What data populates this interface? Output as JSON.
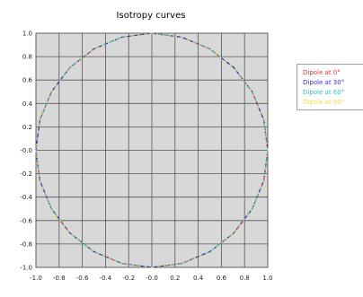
{
  "chart_data": {
    "type": "line",
    "title": "Isotropy curves",
    "xlabel": "",
    "ylabel": "",
    "xlim": [
      -1.0,
      1.0
    ],
    "ylim": [
      -1.0,
      1.0
    ],
    "x_ticks": [
      "-1.0",
      "-0.8",
      "-0.6",
      "-0.4",
      "-0.2",
      "-0.0",
      "0.2",
      "0.4",
      "0.6",
      "0.8",
      "1.0"
    ],
    "y_ticks": [
      "1.0",
      "0.8",
      "0.6",
      "0.4",
      "0.2",
      "-0.0",
      "-0.2",
      "-0.4",
      "-0.6",
      "-0.8",
      "-1.0"
    ],
    "grid": true,
    "plot_background": "#d8d8d8",
    "legend_placement": "right",
    "series": [
      {
        "name": "Dipole at 0°",
        "color": "#e03030",
        "x": [
          1.0,
          0.966,
          0.866,
          0.707,
          0.5,
          0.259,
          0.0,
          -0.259,
          -0.5,
          -0.707,
          -0.866,
          -0.966,
          -1.0,
          -0.966,
          -0.866,
          -0.707,
          -0.5,
          -0.259,
          0.0,
          0.259,
          0.5,
          0.707,
          0.866,
          0.966,
          1.0
        ],
        "y": [
          0.0,
          0.259,
          0.5,
          0.707,
          0.866,
          0.966,
          1.0,
          0.966,
          0.866,
          0.707,
          0.5,
          0.259,
          0.0,
          -0.259,
          -0.5,
          -0.707,
          -0.866,
          -0.966,
          -1.0,
          -0.966,
          -0.866,
          -0.707,
          -0.5,
          -0.259,
          0.0
        ]
      },
      {
        "name": "Dipole at 30°",
        "color": "#3030d0",
        "x": [
          1.0,
          0.966,
          0.866,
          0.707,
          0.5,
          0.259,
          0.0,
          -0.259,
          -0.5,
          -0.707,
          -0.866,
          -0.966,
          -1.0,
          -0.966,
          -0.866,
          -0.707,
          -0.5,
          -0.259,
          0.0,
          0.259,
          0.5,
          0.707,
          0.866,
          0.966,
          1.0
        ],
        "y": [
          0.0,
          0.259,
          0.5,
          0.707,
          0.866,
          0.966,
          1.0,
          0.966,
          0.866,
          0.707,
          0.5,
          0.259,
          0.0,
          -0.259,
          -0.5,
          -0.707,
          -0.866,
          -0.966,
          -1.0,
          -0.966,
          -0.866,
          -0.707,
          -0.5,
          -0.259,
          0.0
        ]
      },
      {
        "name": "Dipole at 60°",
        "color": "#30c0c0",
        "x": [
          1.0,
          0.966,
          0.866,
          0.707,
          0.5,
          0.259,
          0.0,
          -0.259,
          -0.5,
          -0.707,
          -0.866,
          -0.966,
          -1.0,
          -0.966,
          -0.866,
          -0.707,
          -0.5,
          -0.259,
          0.0,
          0.259,
          0.5,
          0.707,
          0.866,
          0.966,
          1.0
        ],
        "y": [
          0.0,
          0.259,
          0.5,
          0.707,
          0.866,
          0.966,
          1.0,
          0.966,
          0.866,
          0.707,
          0.5,
          0.259,
          0.0,
          -0.259,
          -0.5,
          -0.707,
          -0.866,
          -0.966,
          -1.0,
          -0.966,
          -0.866,
          -0.707,
          -0.5,
          -0.259,
          0.0
        ]
      },
      {
        "name": "Dipole at 90°",
        "color": "#e8e040",
        "x": [
          1.0,
          0.966,
          0.866,
          0.707,
          0.5,
          0.259,
          0.0,
          -0.259,
          -0.5,
          -0.707,
          -0.866,
          -0.966,
          -1.0,
          -0.966,
          -0.866,
          -0.707,
          -0.5,
          -0.259,
          0.0,
          0.259,
          0.5,
          0.707,
          0.866,
          0.966,
          1.0
        ],
        "y": [
          0.0,
          0.259,
          0.5,
          0.707,
          0.866,
          0.966,
          1.0,
          0.966,
          0.866,
          0.707,
          0.5,
          0.259,
          0.0,
          -0.259,
          -0.5,
          -0.707,
          -0.866,
          -0.966,
          -1.0,
          -0.966,
          -0.866,
          -0.707,
          -0.5,
          -0.259,
          0.0
        ]
      }
    ]
  }
}
